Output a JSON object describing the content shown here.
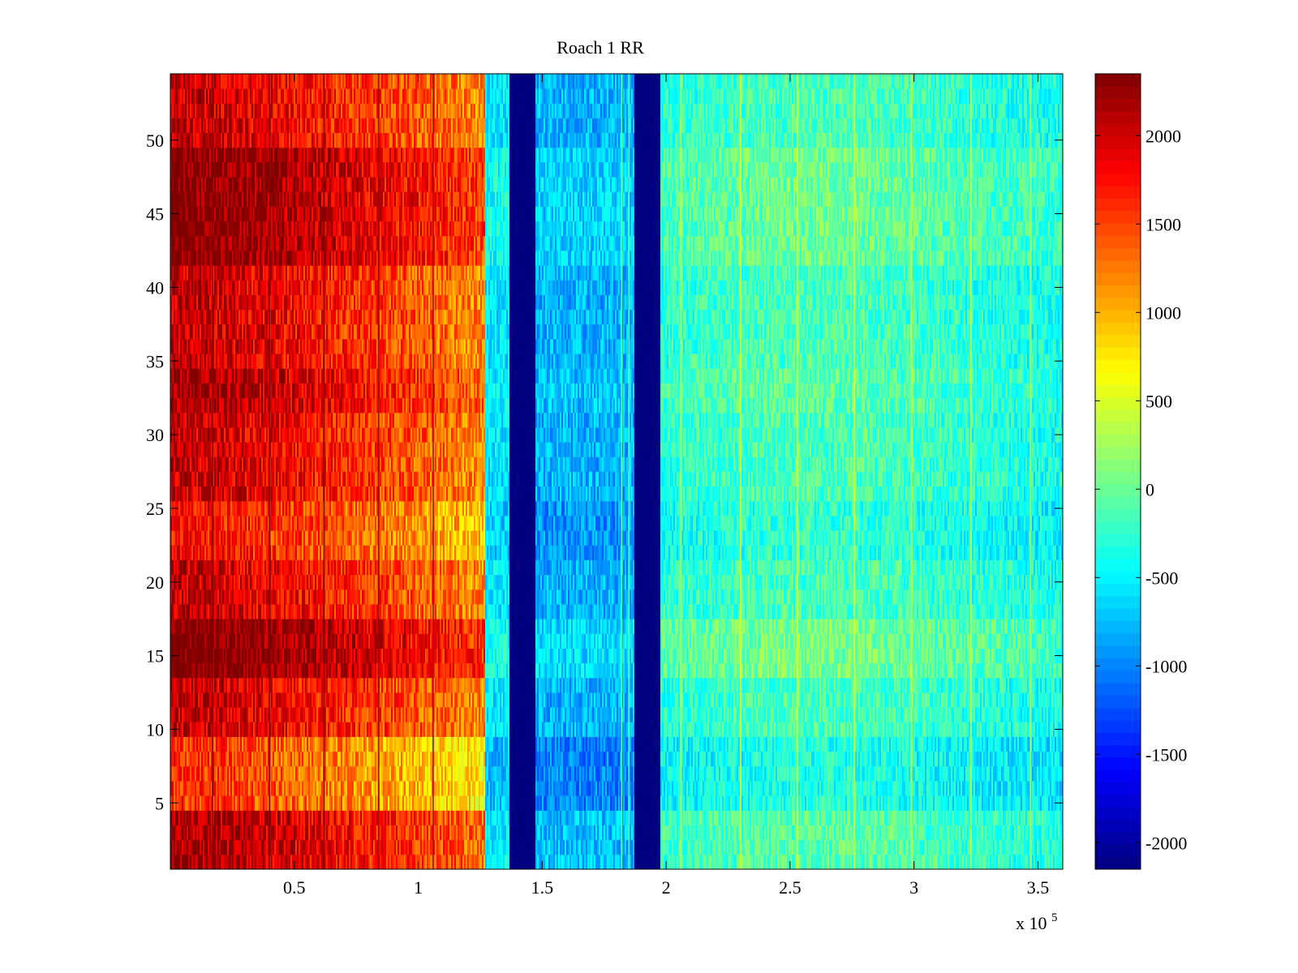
{
  "chart_data": {
    "type": "heatmap",
    "title": "Roach 1 RR",
    "xlabel": "",
    "ylabel": "",
    "x_multiplier_label": {
      "base": "x 10",
      "exponent": "5"
    },
    "xlim": [
      0,
      3.6
    ],
    "ylim": [
      0.5,
      54.5
    ],
    "x_ticks": [
      0.5,
      1,
      1.5,
      2,
      2.5,
      3,
      3.5
    ],
    "x_tick_labels": [
      "0.5",
      "1",
      "1.5",
      "2",
      "2.5",
      "3",
      "3.5"
    ],
    "y_ticks": [
      5,
      10,
      15,
      20,
      25,
      30,
      35,
      40,
      45,
      50
    ],
    "y_tick_labels": [
      "5",
      "10",
      "15",
      "20",
      "25",
      "30",
      "35",
      "40",
      "45",
      "50"
    ],
    "colorbar": {
      "colormap": "jet",
      "clim": [
        -2150,
        2350
      ],
      "ticks": [
        -2000,
        -1500,
        -1000,
        -500,
        0,
        500,
        1000,
        1500,
        2000
      ],
      "tick_labels": [
        "-2000",
        "-1500",
        "-1000",
        "-500",
        "0",
        "500",
        "1000",
        "1500",
        "2000"
      ]
    },
    "rows": 54,
    "description_regions": [
      {
        "x_range": [
          0,
          1.27
        ],
        "approx_value_range": [
          1000,
          2300
        ],
        "note": "warm band, value decreasing with x"
      },
      {
        "x_range": [
          1.27,
          1.37
        ],
        "approx_value_range": [
          -700,
          -400
        ]
      },
      {
        "x_range": [
          1.37,
          1.47
        ],
        "approx_value": -2150,
        "note": "saturated low band"
      },
      {
        "x_range": [
          1.47,
          1.87
        ],
        "approx_value_range": [
          -1100,
          -500
        ]
      },
      {
        "x_range": [
          1.87,
          1.98
        ],
        "approx_value": -2150,
        "note": "saturated low band"
      },
      {
        "x_range": [
          1.98,
          3.6
        ],
        "approx_value_range": [
          -500,
          200
        ]
      }
    ],
    "row_adjustments": [
      {
        "y_range": [
          1,
          4
        ],
        "delta": 150
      },
      {
        "y_range": [
          5,
          9
        ],
        "delta": -450
      },
      {
        "y_range": [
          14,
          17
        ],
        "delta": 420
      },
      {
        "y_range": [
          22,
          25
        ],
        "delta": -260
      },
      {
        "y_range": [
          32,
          34
        ],
        "delta": 180
      },
      {
        "y_range": [
          42,
          49
        ],
        "delta": 340
      }
    ],
    "vertical_lines_x": [
      0.17,
      0.4,
      0.62,
      0.84,
      1.06,
      1.82,
      1.85,
      2.06,
      2.3,
      2.53,
      2.76,
      2.99,
      3.23,
      3.47
    ],
    "grid": false,
    "legend": "colorbar-right"
  }
}
